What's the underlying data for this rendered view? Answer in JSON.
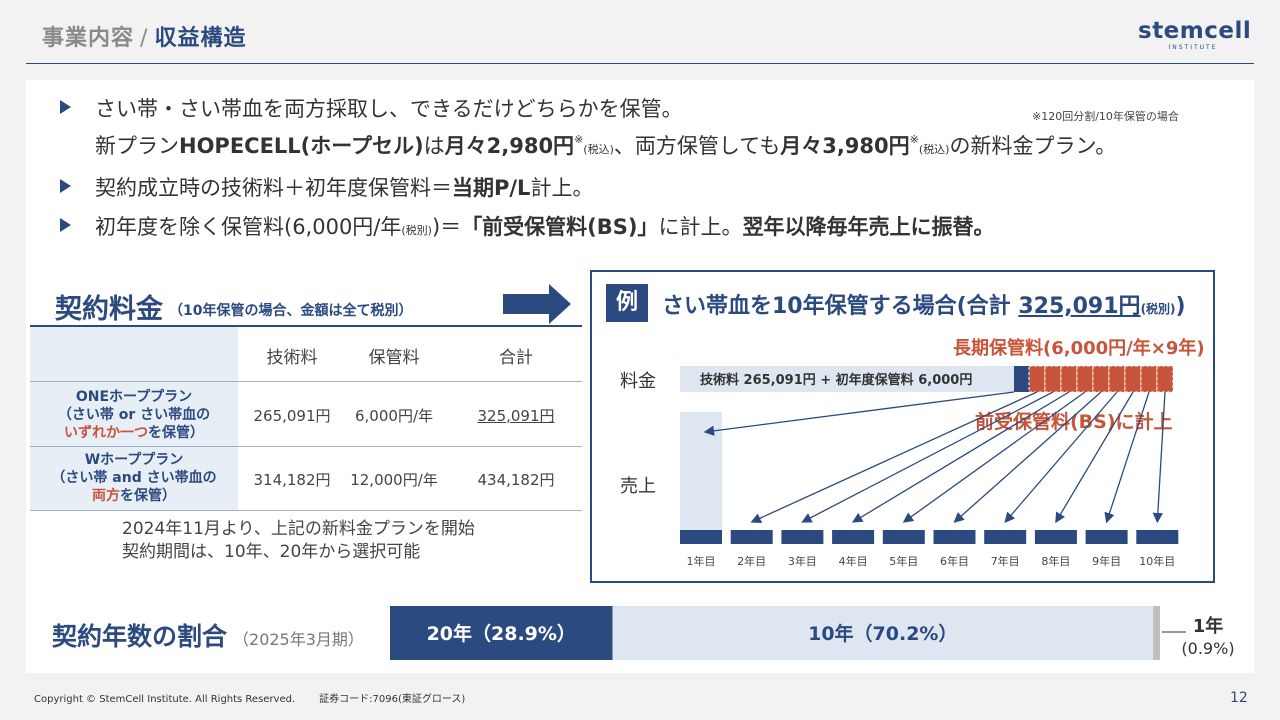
{
  "header": {
    "section": "事業内容",
    "separator": "/",
    "title": "収益構造",
    "logo_text": "stemcell",
    "logo_sub": "INSTITUTE"
  },
  "bullets": {
    "b1_line1": "さい帯・さい帯血を両方採取し、できるだけどちらかを保管。",
    "b1_note": "※120回分割/10年保管の場合",
    "b1_line2_a": "新プラン",
    "b1_line2_b": "HOPECELL(ホープセル)",
    "b1_line2_c": "は",
    "b1_line2_d": "月々2,980円",
    "b1_line2_e": "※",
    "b1_line2_f": "(税込)",
    "b1_line2_g": "、両方保管しても",
    "b1_line2_h": "月々3,980円",
    "b1_line2_i": "※",
    "b1_line2_j": "(税込)",
    "b1_line2_k": "の新料金プラン。",
    "b2_a": "契約成立時の技術料＋初年度保管料＝",
    "b2_b": "当期P/L",
    "b2_c": "計上。",
    "b3_a": "初年度を除く保管料(6,000円/年",
    "b3_b": "(税別)",
    "b3_c": ")＝",
    "b3_d": "「前受保管料(BS)」",
    "b3_e": "に計上。",
    "b3_f": "翌年以降毎年売上に振替。"
  },
  "fee_table": {
    "title": "契約料金",
    "note": "（10年保管の場合、金額は全て税別）",
    "headers": [
      "技術料",
      "保管料",
      "合計"
    ],
    "rows": [
      {
        "plan_l1": "ONEホーププラン",
        "plan_l2": "（さい帯 or さい帯血の",
        "plan_l3_red": "いずれか一つ",
        "plan_l3_rest": "を保管）",
        "tech": "265,091円",
        "storage": "6,000円/年",
        "total": "325,091円"
      },
      {
        "plan_l1": "Wホーププラン",
        "plan_l2": "（さい帯 and さい帯血の",
        "plan_l3_red": "両方",
        "plan_l3_rest": "を保管）",
        "tech": "314,182円",
        "storage": "12,000円/年",
        "total": "434,182円"
      }
    ],
    "note_line1": "2024年11月より、上記の新料金プランを開始",
    "note_line2": "契約期間は、10年、20年から選択可能"
  },
  "example": {
    "badge": "例",
    "title_a": "さい帯血を10年保管する場合(合計 ",
    "title_amount": "325,091円",
    "title_tax": "(税別)",
    "title_b": ")",
    "long_term_label": "長期保管料(6,000円/年×9年)",
    "fee_row_label": "料金",
    "fee_bar_text": "技術料 265,091円 + 初年度保管料 6,000円",
    "advance_label": "前受保管料(BS)に計上",
    "sales_row_label": "売上",
    "years": [
      "1年目",
      "2年目",
      "3年目",
      "4年目",
      "5年目",
      "6年目",
      "7年目",
      "8年目",
      "9年目",
      "10年目"
    ]
  },
  "ratio": {
    "title": "契約年数の割合",
    "date": "（2025年3月期）",
    "chart_data": {
      "type": "bar",
      "categories": [
        "20年",
        "10年",
        "1年"
      ],
      "values": [
        28.9,
        70.2,
        0.9
      ],
      "labels": [
        "20年（28.9%）",
        "10年（70.2%）",
        "1年"
      ],
      "one_year_pct": "(0.9%)",
      "colors": [
        "#2b4a80",
        "#dde6f1",
        "#bfbfbf"
      ]
    }
  },
  "footer": {
    "copyright": "Copyright © StemCell Institute. All Rights Reserved.",
    "code": "証券コード:7096(東証グロース)",
    "page": "12"
  }
}
